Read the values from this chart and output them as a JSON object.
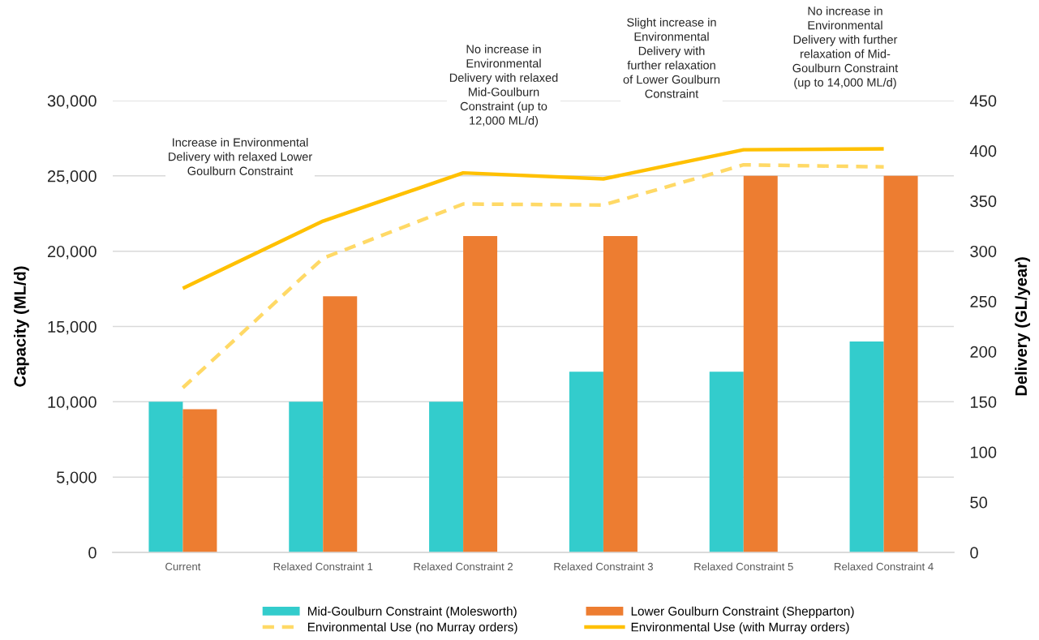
{
  "chart_data": {
    "type": "bar",
    "categories": [
      "Current",
      "Relaxed Constraint 1",
      "Relaxed Constraint 2",
      "Relaxed Constraint 3",
      "Relaxed Constraint 5",
      "Relaxed Constraint 4"
    ],
    "series": [
      {
        "name": "Mid-Goulburn Constraint (Molesworth)",
        "color": "#33cccc",
        "values": [
          10000,
          10000,
          10000,
          12000,
          12000,
          14000
        ]
      },
      {
        "name": "Lower Goulburn Constraint (Shepparton)",
        "color": "#ed7d31",
        "values": [
          9500,
          17000,
          21000,
          21000,
          25000,
          25000
        ]
      },
      {
        "name": "Environmental Use (no Murray orders)",
        "type": "line",
        "axis": "y2",
        "line_style": "dashed",
        "color": "#ffd966",
        "values": [
          164,
          293,
          347,
          346,
          386,
          384
        ]
      },
      {
        "name": "Environmental Use (with Murray orders)",
        "type": "line",
        "axis": "y2",
        "line_style": "solid",
        "color": "#ffc000",
        "values": [
          263,
          330,
          378,
          372,
          401,
          402
        ]
      }
    ],
    "ylabel": "Capacity (ML/d)",
    "y2label": "Delivery (GL/year)",
    "ylim": [
      0,
      30000
    ],
    "yticks": [
      0,
      {
        "value": 5000,
        "label": "5,000"
      },
      {
        "value": 10000,
        "label": "10,000"
      },
      {
        "value": 15000,
        "label": "15,000"
      },
      {
        "value": 20000,
        "label": "20,000"
      },
      {
        "value": 25000,
        "label": "25,000"
      },
      {
        "value": 30000,
        "label": "30,000"
      }
    ],
    "y2lim": [
      0,
      450
    ],
    "y2ticks": [
      0,
      50,
      100,
      150,
      200,
      250,
      300,
      350,
      400,
      450
    ],
    "grid": "y",
    "legend": "bottom",
    "annotations": [
      "Increase in Environmental\nDelivery with relaxed Lower\nGoulburn Constraint",
      "No increase in\nEnvironmental\nDelivery with relaxed\nMid-Goulburn\nConstraint (up to\n12,000 ML/d)",
      "Slight increase in\nEnvironmental\nDelivery with\nfurther relaxation\nof Lower Goulburn\nConstraint",
      "No increase in\nEnvironmental\nDelivery with further\nrelaxation of Mid-\nGoulburn Constraint\n(up to 14,000 ML/d)"
    ]
  }
}
